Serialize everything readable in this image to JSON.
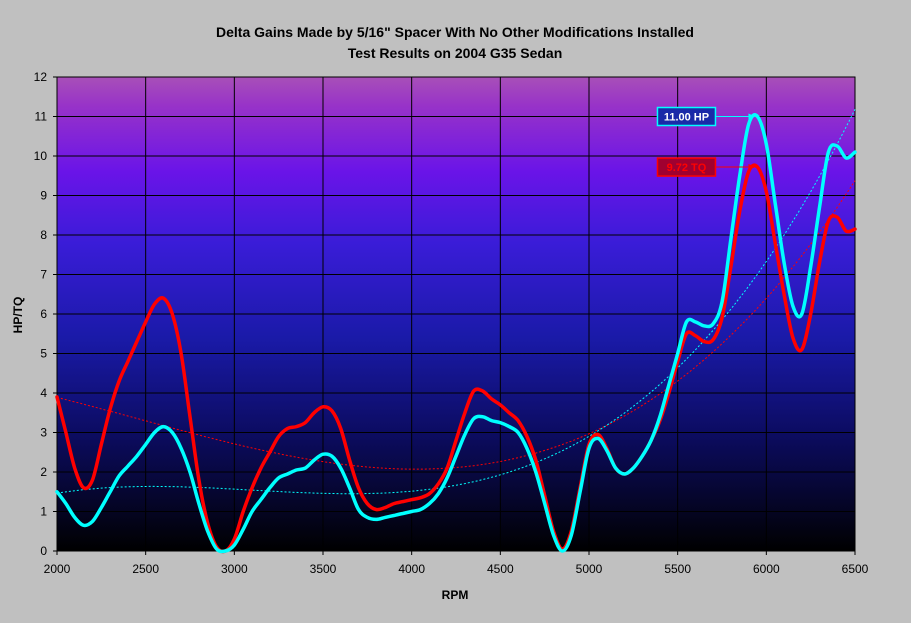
{
  "chart_data": {
    "type": "line",
    "title": "Delta Gains Made by 5/16\" Spacer With No Other Modifications Installed",
    "subtitle": "Test Results on 2004 G35 Sedan",
    "xlabel": "RPM",
    "ylabel": "HP/TQ",
    "xlim": [
      2000,
      6500
    ],
    "ylim": [
      0,
      12
    ],
    "x_ticks": [
      2000,
      2500,
      3000,
      3500,
      4000,
      4500,
      5000,
      5500,
      6000,
      6500
    ],
    "y_ticks": [
      0,
      1,
      2,
      3,
      4,
      5,
      6,
      7,
      8,
      9,
      10,
      11,
      12
    ],
    "grid": true,
    "background": "gradient-purple-to-black",
    "series": [
      {
        "color": "#ff0000",
        "x": [
          2000,
          2050,
          2100,
          2150,
          2200,
          2250,
          2300,
          2350,
          2400,
          2450,
          2500,
          2550,
          2600,
          2650,
          2700,
          2750,
          2800,
          2850,
          2900,
          2950,
          3000,
          3050,
          3100,
          3150,
          3200,
          3250,
          3300,
          3350,
          3400,
          3450,
          3500,
          3550,
          3600,
          3650,
          3700,
          3750,
          3800,
          3850,
          3900,
          3950,
          4000,
          4050,
          4100,
          4150,
          4200,
          4250,
          4300,
          4350,
          4400,
          4450,
          4500,
          4550,
          4600,
          4650,
          4700,
          4750,
          4800,
          4850,
          4900,
          4950,
          5000,
          5050,
          5100,
          5150,
          5200,
          5250,
          5300,
          5350,
          5400,
          5450,
          5500,
          5550,
          5600,
          5650,
          5700,
          5750,
          5800,
          5850,
          5900,
          5950,
          6000,
          6050,
          6100,
          6150,
          6200,
          6250,
          6300,
          6350,
          6400,
          6450,
          6500
        ],
        "values": [
          3.9,
          3.0,
          2.1,
          1.6,
          1.8,
          2.7,
          3.6,
          4.3,
          4.8,
          5.3,
          5.8,
          6.25,
          6.4,
          6.0,
          5.0,
          3.4,
          1.8,
          0.7,
          0.1,
          0.0,
          0.3,
          1.0,
          1.6,
          2.1,
          2.5,
          2.9,
          3.1,
          3.15,
          3.25,
          3.5,
          3.65,
          3.55,
          3.1,
          2.3,
          1.6,
          1.2,
          1.05,
          1.1,
          1.2,
          1.25,
          1.3,
          1.35,
          1.45,
          1.7,
          2.1,
          2.8,
          3.5,
          4.05,
          4.05,
          3.85,
          3.7,
          3.5,
          3.3,
          2.9,
          2.3,
          1.4,
          0.5,
          0.05,
          0.5,
          1.6,
          2.7,
          2.95,
          2.6,
          2.1,
          1.95,
          2.1,
          2.4,
          2.8,
          3.3,
          4.0,
          4.8,
          5.5,
          5.45,
          5.3,
          5.35,
          5.9,
          7.2,
          8.6,
          9.6,
          9.72,
          9.1,
          7.8,
          6.5,
          5.4,
          5.1,
          6.0,
          7.3,
          8.35,
          8.45,
          8.1,
          8.15
        ]
      },
      {
        "color": "#00ffff",
        "x": [
          2000,
          2050,
          2100,
          2150,
          2200,
          2250,
          2300,
          2350,
          2400,
          2450,
          2500,
          2550,
          2600,
          2650,
          2700,
          2750,
          2800,
          2850,
          2900,
          2950,
          3000,
          3050,
          3100,
          3150,
          3200,
          3250,
          3300,
          3350,
          3400,
          3450,
          3500,
          3550,
          3600,
          3650,
          3700,
          3750,
          3800,
          3850,
          3900,
          3950,
          4000,
          4050,
          4100,
          4150,
          4200,
          4250,
          4300,
          4350,
          4400,
          4450,
          4500,
          4550,
          4600,
          4650,
          4700,
          4750,
          4800,
          4850,
          4900,
          4950,
          5000,
          5050,
          5100,
          5150,
          5200,
          5250,
          5300,
          5350,
          5400,
          5450,
          5500,
          5550,
          5600,
          5650,
          5700,
          5750,
          5800,
          5850,
          5900,
          5950,
          6000,
          6050,
          6100,
          6150,
          6200,
          6250,
          6300,
          6350,
          6400,
          6450,
          6500
        ],
        "values": [
          1.5,
          1.2,
          0.85,
          0.65,
          0.75,
          1.1,
          1.5,
          1.9,
          2.15,
          2.4,
          2.7,
          3.0,
          3.15,
          3.0,
          2.6,
          2.0,
          1.2,
          0.5,
          0.05,
          0.0,
          0.15,
          0.55,
          1.0,
          1.3,
          1.6,
          1.85,
          1.95,
          2.05,
          2.1,
          2.3,
          2.45,
          2.4,
          2.1,
          1.6,
          1.05,
          0.85,
          0.8,
          0.85,
          0.9,
          0.95,
          1.0,
          1.05,
          1.2,
          1.45,
          1.85,
          2.4,
          2.95,
          3.35,
          3.4,
          3.3,
          3.25,
          3.15,
          3.0,
          2.6,
          2.0,
          1.2,
          0.4,
          0.0,
          0.4,
          1.5,
          2.6,
          2.85,
          2.55,
          2.1,
          1.95,
          2.1,
          2.4,
          2.8,
          3.4,
          4.2,
          5.0,
          5.8,
          5.8,
          5.7,
          5.75,
          6.3,
          7.9,
          9.5,
          10.8,
          11.0,
          10.3,
          8.8,
          7.3,
          6.2,
          6.0,
          7.2,
          8.7,
          10.1,
          10.25,
          9.95,
          10.1
        ]
      }
    ],
    "trendlines": [
      {
        "color": "#ff0000",
        "dashed": true
      },
      {
        "color": "#00ffff",
        "dashed": true
      }
    ],
    "annotations": [
      {
        "text": "11.00 HP",
        "x": 5950,
        "y": 11.0,
        "text_color": "#ffffff",
        "box_color": "#00ffff"
      },
      {
        "text": "9.72 TQ",
        "x": 5950,
        "y": 9.72,
        "text_color": "#ff0000",
        "box_color": "#ff0000"
      }
    ]
  }
}
